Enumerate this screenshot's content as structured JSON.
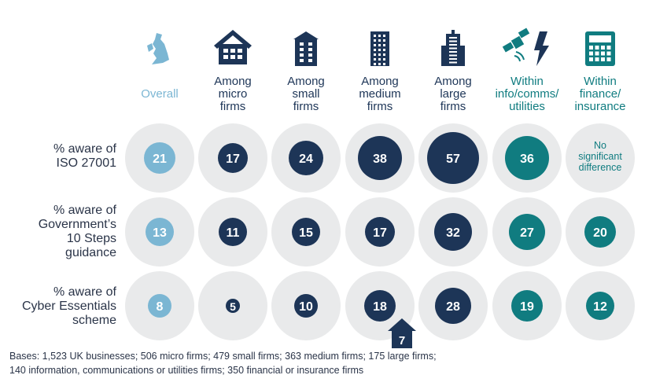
{
  "colors": {
    "overall": "#7bb6d3",
    "size": "#1d3557",
    "sector": "#107c80",
    "backdrop": "#e9eaeb",
    "text": "#2a3448"
  },
  "chart_data": {
    "type": "table",
    "title": "",
    "columns": [
      {
        "label": "Overall",
        "color": "overall",
        "icon": "uk-map-icon"
      },
      {
        "label": "Among micro firms",
        "lines": [
          "Among",
          "micro",
          "firms"
        ],
        "color": "size",
        "icon": "house-icon"
      },
      {
        "label": "Among small firms",
        "lines": [
          "Among",
          "small",
          "firms"
        ],
        "color": "size",
        "icon": "small-building-icon"
      },
      {
        "label": "Among medium firms",
        "lines": [
          "Among",
          "medium",
          "firms"
        ],
        "color": "size",
        "icon": "medium-building-icon"
      },
      {
        "label": "Among large firms",
        "lines": [
          "Among",
          "large",
          "firms"
        ],
        "color": "size",
        "icon": "skyscraper-icon"
      },
      {
        "label": "Within info/comms/ utilities",
        "lines": [
          "Within",
          "info/comms/",
          "utilities"
        ],
        "color": "sector",
        "icon": "satellite-lightning-icon"
      },
      {
        "label": "Within finance/ insurance",
        "lines": [
          "Within",
          "finance/",
          "insurance"
        ],
        "color": "sector",
        "icon": "calculator-icon"
      }
    ],
    "rows": [
      {
        "label": "% aware of ISO 27001",
        "lines": [
          "% aware of",
          "ISO 27001"
        ],
        "values": [
          21,
          17,
          24,
          38,
          57,
          36,
          null
        ]
      },
      {
        "label": "% aware of Government's 10 Steps guidance",
        "lines": [
          "% aware of",
          "Government’s",
          "10 Steps",
          "guidance"
        ],
        "values": [
          13,
          11,
          15,
          17,
          32,
          27,
          20
        ]
      },
      {
        "label": "% aware of Cyber Essentials scheme",
        "lines": [
          "% aware of",
          "Cyber Essentials",
          "scheme"
        ],
        "values": [
          8,
          5,
          10,
          18,
          28,
          19,
          12
        ]
      }
    ],
    "no_difference_text": [
      "No",
      "significant",
      "difference"
    ],
    "callout": {
      "column": 3,
      "row": 2,
      "value": 7,
      "direction": "up"
    }
  },
  "bases": {
    "line1": "Bases: 1,523 UK businesses; 506 micro firms; 479 small firms; 363 medium firms; 175 large firms;",
    "line2": "140 information, communications or utilities firms; 350 financial or insurance firms"
  }
}
